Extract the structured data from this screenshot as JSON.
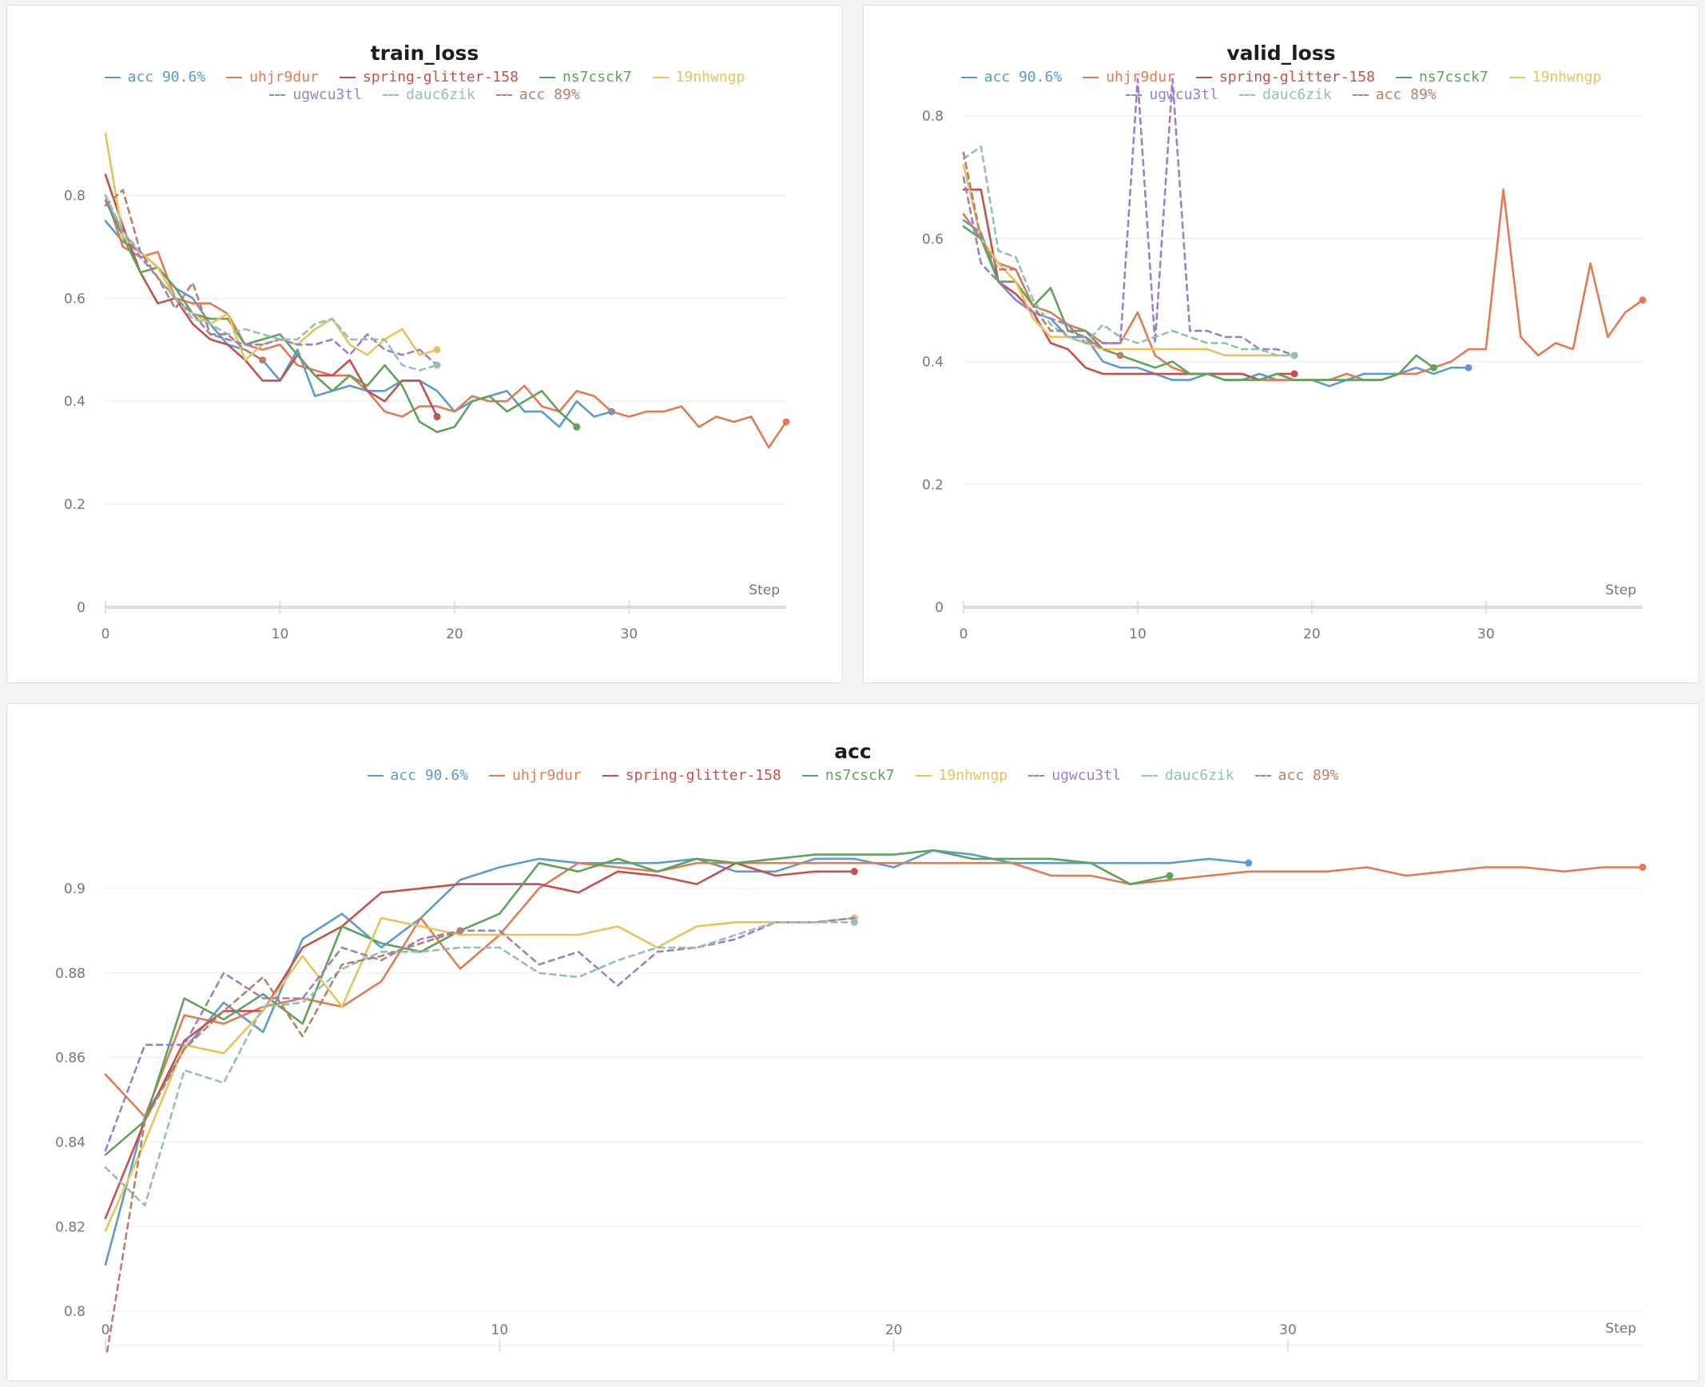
{
  "chart_data": [
    {
      "type": "line",
      "title": "train_loss",
      "xlabel": "Step",
      "ylabel": "",
      "xlim": [
        0,
        39
      ],
      "ylim": [
        0,
        0.92
      ],
      "x_ticks": [
        "0",
        "10",
        "20",
        "30"
      ],
      "y_ticks": [
        "0",
        "0.2",
        "0.4",
        "0.6",
        "0.8"
      ],
      "grid": true,
      "legend_position": "top-center",
      "series": [
        {
          "name": "acc 90.6%",
          "color": "#5b9bd5",
          "dash": false,
          "end_marker": true,
          "values": [
            0.75,
            0.71,
            0.69,
            0.66,
            0.62,
            0.6,
            0.55,
            0.51,
            0.5,
            0.48,
            0.44,
            0.5,
            0.41,
            0.42,
            0.43,
            0.42,
            0.42,
            0.44,
            0.44,
            0.42,
            0.38,
            0.4,
            0.41,
            0.42,
            0.38,
            0.38,
            0.35,
            0.4,
            0.37,
            0.38
          ]
        },
        {
          "name": "uhjr9dur",
          "color": "#e07b54",
          "dash": false,
          "end_marker": true,
          "values": [
            0.8,
            0.7,
            0.68,
            0.69,
            0.6,
            0.59,
            0.59,
            0.57,
            0.51,
            0.5,
            0.51,
            0.47,
            0.46,
            0.45,
            0.45,
            0.42,
            0.38,
            0.37,
            0.39,
            0.39,
            0.38,
            0.41,
            0.4,
            0.4,
            0.43,
            0.39,
            0.38,
            0.42,
            0.41,
            0.38,
            0.37,
            0.38,
            0.38,
            0.39,
            0.35,
            0.37,
            0.36,
            0.37,
            0.31,
            0.36
          ]
        },
        {
          "name": "spring-glitter-158",
          "color": "#c4514e",
          "dash": false,
          "end_marker": true,
          "values": [
            0.84,
            0.74,
            0.65,
            0.59,
            0.6,
            0.55,
            0.52,
            0.51,
            0.48,
            0.44,
            0.44,
            0.49,
            0.45,
            0.45,
            0.48,
            0.42,
            0.4,
            0.44,
            0.44,
            0.37
          ]
        },
        {
          "name": "ns7csck7",
          "color": "#5ea35a",
          "dash": false,
          "end_marker": true,
          "values": [
            0.79,
            0.72,
            0.65,
            0.66,
            0.62,
            0.57,
            0.56,
            0.56,
            0.51,
            0.52,
            0.53,
            0.49,
            0.45,
            0.42,
            0.45,
            0.43,
            0.47,
            0.43,
            0.36,
            0.34,
            0.35,
            0.4,
            0.41,
            0.38,
            0.4,
            0.42,
            0.38,
            0.35
          ]
        },
        {
          "name": "19nhwngp",
          "color": "#e8c25a",
          "dash": false,
          "end_marker": true,
          "values": [
            0.92,
            0.72,
            0.69,
            0.66,
            0.6,
            0.57,
            0.55,
            0.57,
            0.48,
            0.51,
            0.52,
            0.51,
            0.54,
            0.56,
            0.51,
            0.49,
            0.52,
            0.54,
            0.49,
            0.5
          ]
        },
        {
          "name": "ugwcu3tl",
          "color": "#9b7fcf",
          "dash": true,
          "end_marker": false,
          "values": [
            0.79,
            0.73,
            0.68,
            0.64,
            0.6,
            0.57,
            0.53,
            0.52,
            0.51,
            0.51,
            0.52,
            0.51,
            0.51,
            0.52,
            0.49,
            0.53,
            0.5,
            0.49,
            0.5,
            0.47
          ]
        },
        {
          "name": "dauc6zik",
          "color": "#8fc2b0",
          "dash": true,
          "end_marker": true,
          "values": [
            0.8,
            0.73,
            0.69,
            0.64,
            0.6,
            0.56,
            0.55,
            0.53,
            0.54,
            0.53,
            0.52,
            0.52,
            0.55,
            0.56,
            0.52,
            0.52,
            0.52,
            0.47,
            0.46,
            0.47
          ]
        },
        {
          "name": "acc 89%",
          "color": "#b8806a",
          "dash": true,
          "end_marker": true,
          "values": [
            0.78,
            0.81,
            0.69,
            0.64,
            0.58,
            0.63,
            0.53,
            0.53,
            0.5,
            0.48
          ]
        }
      ]
    },
    {
      "type": "line",
      "title": "valid_loss",
      "xlabel": "Step",
      "ylabel": "",
      "xlim": [
        0,
        39
      ],
      "ylim": [
        0,
        0.8
      ],
      "x_ticks": [
        "0",
        "10",
        "20",
        "30"
      ],
      "y_ticks": [
        "0",
        "0.2",
        "0.4",
        "0.6",
        "0.8"
      ],
      "grid": true,
      "legend_position": "top-center",
      "series": [
        {
          "name": "acc 90.6%",
          "color": "#5b9bd5",
          "dash": false,
          "end_marker": true,
          "values": [
            0.63,
            0.61,
            0.53,
            0.5,
            0.48,
            0.47,
            0.44,
            0.44,
            0.4,
            0.39,
            0.39,
            0.38,
            0.37,
            0.37,
            0.38,
            0.37,
            0.37,
            0.38,
            0.37,
            0.37,
            0.37,
            0.36,
            0.37,
            0.38,
            0.38,
            0.38,
            0.39,
            0.38,
            0.39,
            0.39
          ]
        },
        {
          "name": "uhjr9dur",
          "color": "#e07b54",
          "dash": false,
          "end_marker": true,
          "values": [
            0.64,
            0.6,
            0.56,
            0.55,
            0.49,
            0.48,
            0.46,
            0.45,
            0.43,
            0.43,
            0.48,
            0.41,
            0.39,
            0.38,
            0.38,
            0.38,
            0.38,
            0.37,
            0.37,
            0.37,
            0.37,
            0.37,
            0.38,
            0.37,
            0.37,
            0.38,
            0.38,
            0.39,
            0.4,
            0.42,
            0.42,
            0.68,
            0.44,
            0.41,
            0.43,
            0.42,
            0.56,
            0.44,
            0.48,
            0.5
          ]
        },
        {
          "name": "spring-glitter-158",
          "color": "#c4514e",
          "dash": false,
          "end_marker": true,
          "values": [
            0.68,
            0.68,
            0.53,
            0.51,
            0.48,
            0.43,
            0.42,
            0.39,
            0.38,
            0.38,
            0.38,
            0.38,
            0.38,
            0.38,
            0.38,
            0.38,
            0.38,
            0.37,
            0.38,
            0.38
          ]
        },
        {
          "name": "ns7csck7",
          "color": "#5ea35a",
          "dash": false,
          "end_marker": true,
          "values": [
            0.62,
            0.6,
            0.53,
            0.53,
            0.49,
            0.52,
            0.45,
            0.45,
            0.42,
            0.41,
            0.4,
            0.39,
            0.4,
            0.38,
            0.38,
            0.37,
            0.37,
            0.37,
            0.38,
            0.37,
            0.37,
            0.37,
            0.37,
            0.37,
            0.37,
            0.38,
            0.41,
            0.39
          ]
        },
        {
          "name": "19nhwngp",
          "color": "#e8c25a",
          "dash": false,
          "end_marker": true,
          "values": [
            0.72,
            0.6,
            0.56,
            0.53,
            0.47,
            0.44,
            0.44,
            0.43,
            0.42,
            0.42,
            0.42,
            0.42,
            0.42,
            0.42,
            0.42,
            0.41,
            0.41,
            0.41,
            0.41,
            0.41
          ]
        },
        {
          "name": "ugwcu3tl",
          "color": "#9b7fcf",
          "dash": true,
          "end_marker": false,
          "values": [
            0.7,
            0.56,
            0.53,
            0.5,
            0.48,
            0.47,
            0.46,
            0.43,
            0.43,
            0.43,
            0.86,
            0.43,
            0.86,
            0.45,
            0.45,
            0.44,
            0.44,
            0.42,
            0.42,
            0.41
          ]
        },
        {
          "name": "dauc6zik",
          "color": "#8fc2b0",
          "dash": true,
          "end_marker": true,
          "values": [
            0.73,
            0.75,
            0.58,
            0.57,
            0.5,
            0.46,
            0.44,
            0.43,
            0.46,
            0.44,
            0.43,
            0.44,
            0.45,
            0.44,
            0.43,
            0.43,
            0.42,
            0.42,
            0.41,
            0.41
          ]
        },
        {
          "name": "acc 89%",
          "color": "#b8806a",
          "dash": true,
          "end_marker": true,
          "values": [
            0.74,
            0.6,
            0.55,
            0.55,
            0.49,
            0.45,
            0.45,
            0.44,
            0.42,
            0.41
          ]
        }
      ]
    },
    {
      "type": "line",
      "title": "acc",
      "xlabel": "Step",
      "ylabel": "",
      "xlim": [
        0,
        39
      ],
      "ylim": [
        0.79,
        0.91
      ],
      "x_ticks": [
        "0",
        "10",
        "20",
        "30"
      ],
      "y_ticks": [
        "0.8",
        "0.82",
        "0.84",
        "0.86",
        "0.88",
        "0.9"
      ],
      "grid": true,
      "legend_position": "top-center",
      "series": [
        {
          "name": "acc 90.6%",
          "color": "#5b9bd5",
          "dash": false,
          "end_marker": true,
          "values": [
            0.811,
            0.846,
            0.862,
            0.873,
            0.866,
            0.888,
            0.894,
            0.886,
            0.893,
            0.902,
            0.905,
            0.907,
            0.906,
            0.906,
            0.906,
            0.907,
            0.904,
            0.904,
            0.907,
            0.907,
            0.905,
            0.909,
            0.908,
            0.906,
            0.906,
            0.906,
            0.906,
            0.906,
            0.907,
            0.906
          ]
        },
        {
          "name": "uhjr9dur",
          "color": "#e07b54",
          "dash": false,
          "end_marker": true,
          "values": [
            0.856,
            0.846,
            0.87,
            0.868,
            0.872,
            0.874,
            0.872,
            0.878,
            0.893,
            0.881,
            0.889,
            0.9,
            0.906,
            0.905,
            0.904,
            0.906,
            0.906,
            0.906,
            0.906,
            0.906,
            0.906,
            0.906,
            0.906,
            0.906,
            0.903,
            0.903,
            0.901,
            0.902,
            0.903,
            0.904,
            0.904,
            0.904,
            0.905,
            0.903,
            0.904,
            0.905,
            0.905,
            0.904,
            0.905,
            0.905
          ]
        },
        {
          "name": "spring-glitter-158",
          "color": "#c4514e",
          "dash": false,
          "end_marker": true,
          "values": [
            0.822,
            0.845,
            0.864,
            0.871,
            0.871,
            0.886,
            0.891,
            0.899,
            0.9,
            0.901,
            0.901,
            0.901,
            0.899,
            0.904,
            0.903,
            0.901,
            0.906,
            0.903,
            0.904,
            0.904
          ]
        },
        {
          "name": "ns7csck7",
          "color": "#5ea35a",
          "dash": false,
          "end_marker": true,
          "values": [
            0.837,
            0.845,
            0.874,
            0.869,
            0.875,
            0.868,
            0.891,
            0.887,
            0.885,
            0.89,
            0.894,
            0.906,
            0.904,
            0.907,
            0.904,
            0.907,
            0.906,
            0.907,
            0.908,
            0.908,
            0.908,
            0.909,
            0.907,
            0.907,
            0.907,
            0.906,
            0.901,
            0.903
          ]
        },
        {
          "name": "19nhwngp",
          "color": "#e8c25a",
          "dash": false,
          "end_marker": true,
          "values": [
            0.819,
            0.84,
            0.863,
            0.861,
            0.871,
            0.884,
            0.872,
            0.893,
            0.891,
            0.889,
            0.889,
            0.889,
            0.889,
            0.891,
            0.886,
            0.891,
            0.892,
            0.892,
            0.892,
            0.893
          ]
        },
        {
          "name": "ugwcu3tl",
          "color": "#9b7fcf",
          "dash": true,
          "end_marker": false,
          "values": [
            0.838,
            0.863,
            0.863,
            0.88,
            0.874,
            0.874,
            0.886,
            0.883,
            0.888,
            0.89,
            0.89,
            0.882,
            0.885,
            0.877,
            0.885,
            0.886,
            0.888,
            0.892,
            0.892,
            0.893
          ]
        },
        {
          "name": "dauc6zik",
          "color": "#8fc2b0",
          "dash": true,
          "end_marker": true,
          "values": [
            0.834,
            0.825,
            0.857,
            0.854,
            0.872,
            0.873,
            0.881,
            0.885,
            0.885,
            0.886,
            0.886,
            0.88,
            0.879,
            0.883,
            0.886,
            0.886,
            0.889,
            0.892,
            0.892,
            0.892
          ]
        },
        {
          "name": "acc 89%",
          "color": "#b8806a",
          "dash": true,
          "end_marker": true,
          "values": [
            0.788,
            0.845,
            0.862,
            0.871,
            0.879,
            0.865,
            0.882,
            0.884,
            0.887,
            0.89
          ]
        }
      ]
    }
  ]
}
